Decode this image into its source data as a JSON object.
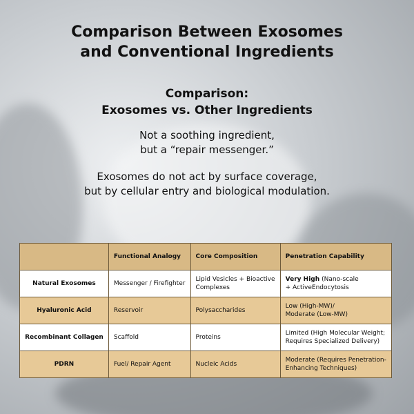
{
  "header": {
    "title": [
      "Comparison Between Exosomes",
      "and Conventional Ingredients"
    ],
    "subtitle": [
      "Comparison:",
      "Exosomes vs. Other Ingredients"
    ],
    "tagline": [
      "Not a soothing ingredient,",
      "but a “repair messenger.”"
    ],
    "description": [
      "Exosomes do not act by surface coverage,",
      "but by cellular entry and biological modulation."
    ]
  },
  "table": {
    "columns": [
      "Functional Analogy",
      "Core Composition",
      "Penetration Capability"
    ],
    "rows": [
      [
        "Natural Exosomes",
        "Messenger / Firefighter",
        "Lipid Vesicles + Bioactive\nComplexes",
        {
          "emphasis": "Very High",
          "text": "(Nano-scale\n+ ActiveEndocytosis"
        }
      ],
      [
        "Hyaluronic Acid",
        "Reservoir",
        "Polysaccharides",
        "Low (High-MW)/\nModerate (Low-MW)"
      ],
      [
        "Recombinant Collagen",
        "Scaffold",
        "Proteins",
        "Limited (High Molecular Weight;\nRequires Specialized Delivery)"
      ],
      [
        "PDRN",
        "Fuel/ Repair Agent",
        "Nucleic Acids",
        "Moderate (Requires Penetration-\nEnhancing Techniques)"
      ]
    ]
  }
}
